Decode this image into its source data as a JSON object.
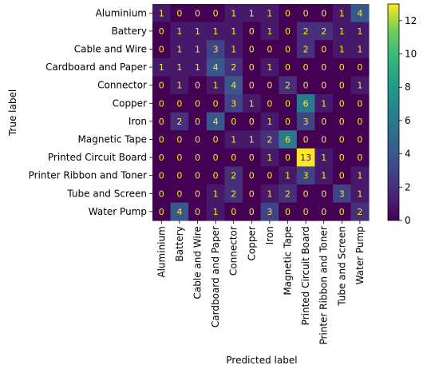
{
  "chart_data": {
    "type": "heatmap",
    "xlabel": "Predicted label",
    "ylabel": "True label",
    "categories": [
      "Aluminium",
      "Battery",
      "Cable and Wire",
      "Cardboard and Paper",
      "Connector",
      "Copper",
      "Iron",
      "Magnetic Tape",
      "Printed Circuit Board",
      "Printer Ribbon and Toner",
      "Tube and Screen",
      "Water Pump"
    ],
    "matrix": [
      [
        1,
        0,
        0,
        0,
        1,
        1,
        1,
        0,
        0,
        0,
        1,
        4
      ],
      [
        0,
        1,
        1,
        1,
        1,
        0,
        1,
        0,
        2,
        2,
        1,
        1
      ],
      [
        0,
        1,
        1,
        3,
        1,
        0,
        0,
        0,
        2,
        0,
        1,
        1
      ],
      [
        1,
        1,
        1,
        4,
        2,
        0,
        1,
        0,
        0,
        0,
        0,
        0
      ],
      [
        0,
        1,
        0,
        1,
        4,
        0,
        0,
        2,
        0,
        0,
        0,
        1
      ],
      [
        0,
        0,
        0,
        0,
        3,
        1,
        0,
        0,
        6,
        1,
        0,
        0
      ],
      [
        0,
        2,
        0,
        4,
        0,
        0,
        1,
        0,
        3,
        0,
        0,
        0
      ],
      [
        0,
        0,
        0,
        0,
        1,
        1,
        2,
        6,
        0,
        0,
        0,
        0
      ],
      [
        0,
        0,
        0,
        0,
        0,
        0,
        1,
        0,
        13,
        1,
        0,
        0
      ],
      [
        0,
        0,
        0,
        0,
        2,
        0,
        0,
        1,
        3,
        1,
        0,
        1
      ],
      [
        0,
        0,
        0,
        1,
        2,
        0,
        1,
        2,
        0,
        0,
        3,
        1
      ],
      [
        0,
        4,
        0,
        1,
        0,
        0,
        3,
        0,
        0,
        0,
        0,
        2
      ]
    ],
    "colorbar": {
      "colormap": "viridis",
      "range": [
        0,
        13
      ],
      "ticks": [
        0,
        2,
        4,
        6,
        8,
        10,
        12
      ]
    },
    "colors": {
      "low_text": "#fde725",
      "high_text": "#440154"
    }
  }
}
